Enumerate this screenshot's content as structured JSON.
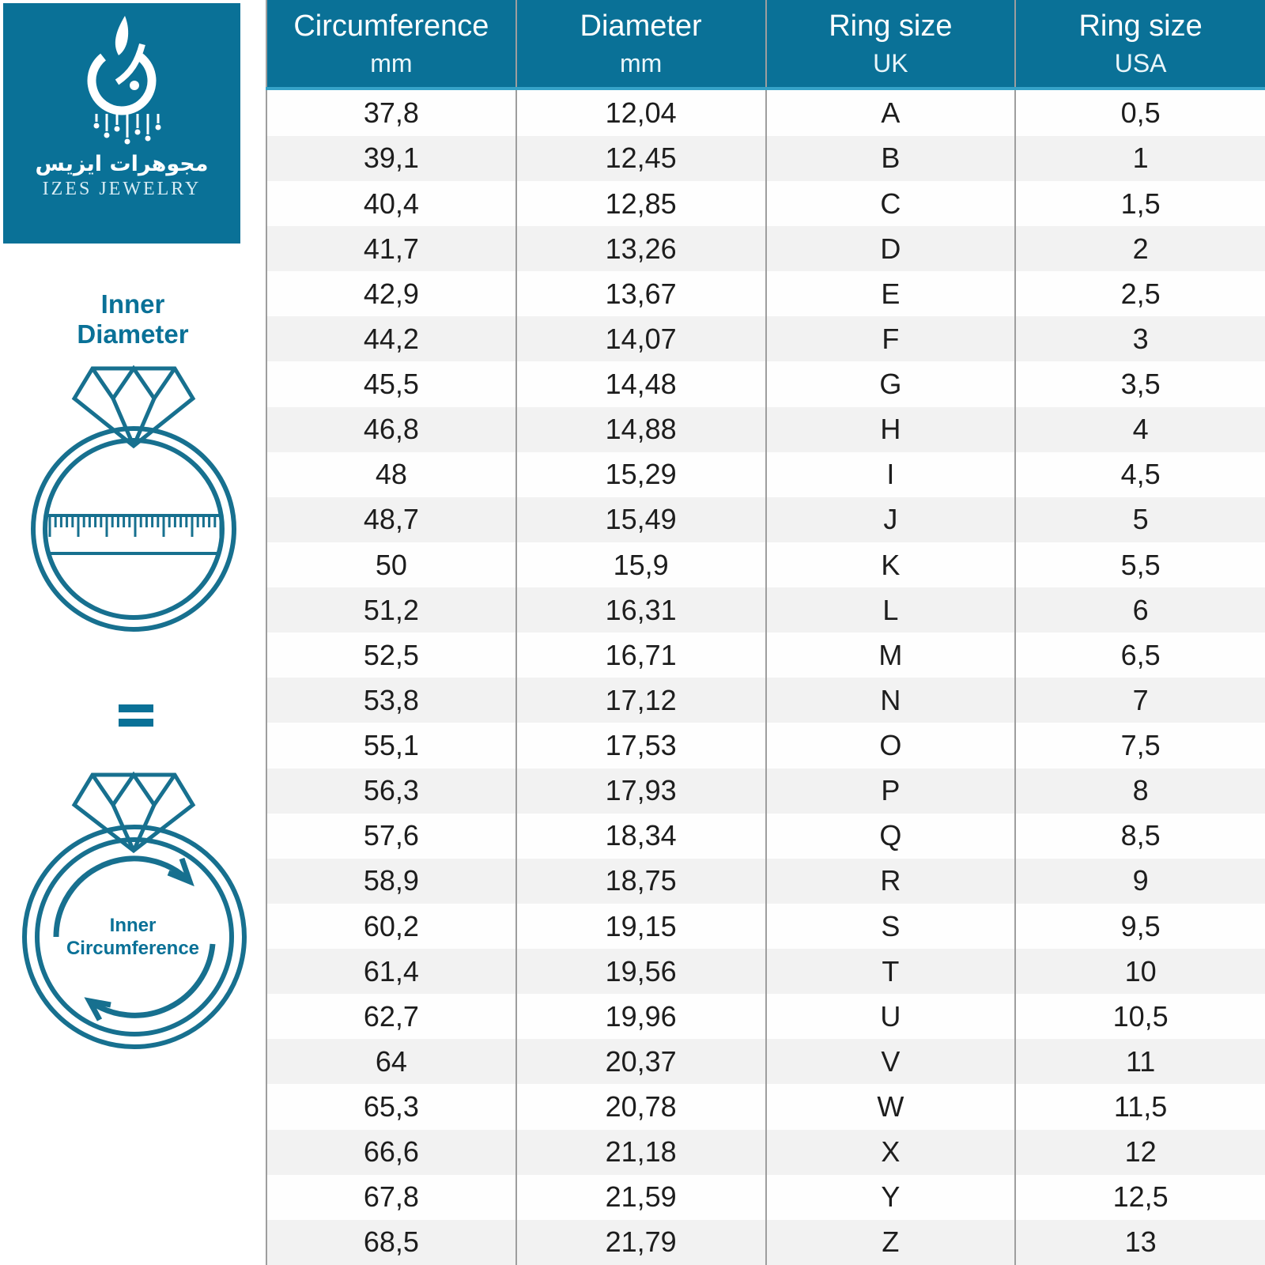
{
  "brand": {
    "arabic_name": "مجوهرات ايزيس",
    "latin_name": "IZES JEWELRY"
  },
  "sidebar": {
    "inner_diameter_label": {
      "line1": "Inner",
      "line2": "Diameter"
    },
    "equals_sign": "=",
    "inner_circumference_label": {
      "line1": "Inner",
      "line2": "Circumference"
    }
  },
  "colors": {
    "accent_teal": "#0A7197",
    "illustration_stroke": "#17708F",
    "header_text": "#FFFFFF",
    "header_underline": "#36A3C8",
    "row_stripe_gray": "#F2F2F2",
    "column_divider_gray": "#9E9E9E",
    "cell_text": "#1D1D1D"
  },
  "table": {
    "columns": [
      {
        "label": "Circumference",
        "sub": "mm"
      },
      {
        "label": "Diameter",
        "sub": "mm"
      },
      {
        "label": "Ring size",
        "sub": "UK"
      },
      {
        "label": "Ring size",
        "sub": "USA"
      }
    ],
    "rows": [
      [
        "37,8",
        "12,04",
        "A",
        "0,5"
      ],
      [
        "39,1",
        "12,45",
        "B",
        "1"
      ],
      [
        "40,4",
        "12,85",
        "C",
        "1,5"
      ],
      [
        "41,7",
        "13,26",
        "D",
        "2"
      ],
      [
        "42,9",
        "13,67",
        "E",
        "2,5"
      ],
      [
        "44,2",
        "14,07",
        "F",
        "3"
      ],
      [
        "45,5",
        "14,48",
        "G",
        "3,5"
      ],
      [
        "46,8",
        "14,88",
        "H",
        "4"
      ],
      [
        "48",
        "15,29",
        "I",
        "4,5"
      ],
      [
        "48,7",
        "15,49",
        "J",
        "5"
      ],
      [
        "50",
        "15,9",
        "K",
        "5,5"
      ],
      [
        "51,2",
        "16,31",
        "L",
        "6"
      ],
      [
        "52,5",
        "16,71",
        "M",
        "6,5"
      ],
      [
        "53,8",
        "17,12",
        "N",
        "7"
      ],
      [
        "55,1",
        "17,53",
        "O",
        "7,5"
      ],
      [
        "56,3",
        "17,93",
        "P",
        "8"
      ],
      [
        "57,6",
        "18,34",
        "Q",
        "8,5"
      ],
      [
        "58,9",
        "18,75",
        "R",
        "9"
      ],
      [
        "60,2",
        "19,15",
        "S",
        "9,5"
      ],
      [
        "61,4",
        "19,56",
        "T",
        "10"
      ],
      [
        "62,7",
        "19,96",
        "U",
        "10,5"
      ],
      [
        "64",
        "20,37",
        "V",
        "11"
      ],
      [
        "65,3",
        "20,78",
        "W",
        "11,5"
      ],
      [
        "66,6",
        "21,18",
        "X",
        "12"
      ],
      [
        "67,8",
        "21,59",
        "Y",
        "12,5"
      ],
      [
        "68,5",
        "21,79",
        "Z",
        "13"
      ]
    ]
  },
  "chart_data": {
    "type": "table",
    "columns": [
      "Circumference (mm)",
      "Diameter (mm)",
      "Ring size (UK)",
      "Ring size (USA)"
    ],
    "rows": [
      [
        "37,8",
        "12,04",
        "A",
        "0,5"
      ],
      [
        "39,1",
        "12,45",
        "B",
        "1"
      ],
      [
        "40,4",
        "12,85",
        "C",
        "1,5"
      ],
      [
        "41,7",
        "13,26",
        "D",
        "2"
      ],
      [
        "42,9",
        "13,67",
        "E",
        "2,5"
      ],
      [
        "44,2",
        "14,07",
        "F",
        "3"
      ],
      [
        "45,5",
        "14,48",
        "G",
        "3,5"
      ],
      [
        "46,8",
        "14,88",
        "H",
        "4"
      ],
      [
        "48",
        "15,29",
        "I",
        "4,5"
      ],
      [
        "48,7",
        "15,49",
        "J",
        "5"
      ],
      [
        "50",
        "15,9",
        "K",
        "5,5"
      ],
      [
        "51,2",
        "16,31",
        "L",
        "6"
      ],
      [
        "52,5",
        "16,71",
        "M",
        "6,5"
      ],
      [
        "53,8",
        "17,12",
        "N",
        "7"
      ],
      [
        "55,1",
        "17,53",
        "O",
        "7,5"
      ],
      [
        "56,3",
        "17,93",
        "P",
        "8"
      ],
      [
        "57,6",
        "18,34",
        "Q",
        "8,5"
      ],
      [
        "58,9",
        "18,75",
        "R",
        "9"
      ],
      [
        "60,2",
        "19,15",
        "S",
        "9,5"
      ],
      [
        "61,4",
        "19,56",
        "T",
        "10"
      ],
      [
        "62,7",
        "19,96",
        "U",
        "10,5"
      ],
      [
        "64",
        "20,37",
        "V",
        "11"
      ],
      [
        "65,3",
        "20,78",
        "W",
        "11,5"
      ],
      [
        "66,6",
        "21,18",
        "X",
        "12"
      ],
      [
        "67,8",
        "21,59",
        "Y",
        "12,5"
      ],
      [
        "68,5",
        "21,79",
        "Z",
        "13"
      ]
    ]
  }
}
